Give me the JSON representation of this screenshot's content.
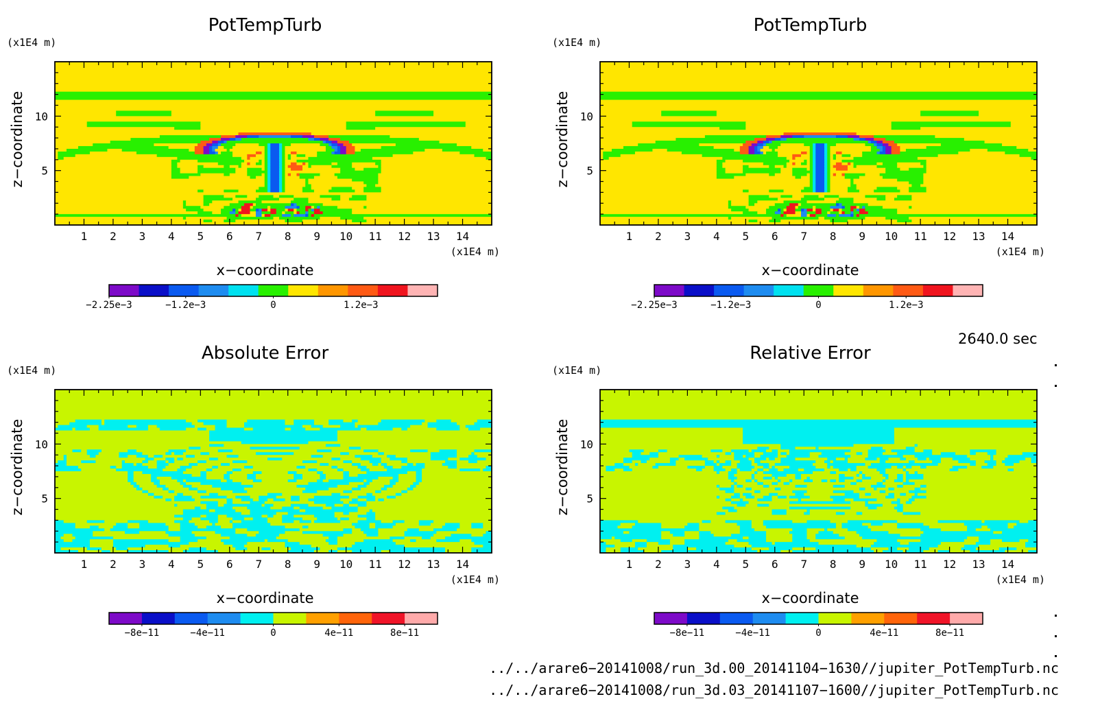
{
  "panels": [
    {
      "id": "tl",
      "title": "PotTempTurb",
      "xlabel": "x−coordinate",
      "ylabel": "z−coordinate",
      "unit": "(x1E4 m)",
      "field": "pottemp",
      "colorbar": {
        "colors": [
          "#7d0ac8",
          "#0a0fc8",
          "#0a5af0",
          "#1e8cf0",
          "#00e1f0",
          "#28f000",
          "#ffe600",
          "#ff9600",
          "#ff5a14",
          "#f0141e",
          "#ffb4b4"
        ],
        "ticks": [
          "−2.25e−3",
          "−1.2e−3",
          "0",
          "1.2e−3"
        ]
      }
    },
    {
      "id": "tr",
      "title": "PotTempTurb",
      "xlabel": "x−coordinate",
      "ylabel": "z−coordinate",
      "unit": "(x1E4 m)",
      "field": "pottemp",
      "colorbar": {
        "colors": [
          "#7d0ac8",
          "#0a0fc8",
          "#0a5af0",
          "#1e8cf0",
          "#00e1f0",
          "#28f000",
          "#ffe600",
          "#ff9600",
          "#ff5a14",
          "#f0141e",
          "#ffb4b4"
        ],
        "ticks": [
          "−2.25e−3",
          "−1.2e−3",
          "0",
          "1.2e−3"
        ]
      }
    },
    {
      "id": "bl",
      "title": "Absolute Error",
      "xlabel": "x−coordinate",
      "ylabel": "z−coordinate",
      "unit": "(x1E4 m)",
      "field": "abserr",
      "colorbar": {
        "colors": [
          "#7d0ac8",
          "#0a0fc8",
          "#0a5af0",
          "#1e8cf0",
          "#00f0f0",
          "#c8f500",
          "#ffa000",
          "#ff640a",
          "#f01428",
          "#ffaaaa"
        ],
        "ticks": [
          "−8e−11",
          "−4e−11",
          "0",
          "4e−11",
          "8e−11"
        ]
      }
    },
    {
      "id": "br",
      "title": "Relative Error",
      "xlabel": "x−coordinate",
      "ylabel": "z−coordinate",
      "unit": "(x1E4 m)",
      "field": "relerr",
      "colorbar": {
        "colors": [
          "#7d0ac8",
          "#0a0fc8",
          "#0a5af0",
          "#1e8cf0",
          "#00f0f0",
          "#c8f500",
          "#ffa000",
          "#ff640a",
          "#f01428",
          "#ffaaaa"
        ],
        "ticks": [
          "−8e−11",
          "−4e−11",
          "0",
          "4e−11",
          "8e−11"
        ]
      }
    }
  ],
  "timestamp": "2640.0 sec",
  "footer": {
    "file1": "../../arare6−20141008/run_3d.00_20141104−1630//jupiter_PotTempTurb.nc",
    "file2": "../../arare6−20141008/run_3d.03_20141107−1600//jupiter_PotTempTurb.nc"
  },
  "chart_data": [
    {
      "type": "heatmap",
      "title": "PotTempTurb",
      "xlabel": "x−coordinate",
      "ylabel": "z−coordinate",
      "xunit": "(x1E4 m)",
      "yunit": "(x1E4 m)",
      "xlim": [
        0,
        15
      ],
      "ylim": [
        0,
        15
      ],
      "xticks": [
        1,
        2,
        3,
        4,
        5,
        6,
        7,
        8,
        9,
        10,
        11,
        12,
        13,
        14
      ],
      "yticks": [
        5,
        10
      ],
      "colorbar_ticks": [
        "−2.25e−3",
        "−1.2e−3",
        "0",
        "1.2e−3"
      ],
      "colorbar_range": [
        -0.00225,
        0.00225
      ]
    },
    {
      "type": "heatmap",
      "title": "PotTempTurb",
      "xlabel": "x−coordinate",
      "ylabel": "z−coordinate",
      "xunit": "(x1E4 m)",
      "yunit": "(x1E4 m)",
      "xlim": [
        0,
        15
      ],
      "ylim": [
        0,
        15
      ],
      "xticks": [
        1,
        2,
        3,
        4,
        5,
        6,
        7,
        8,
        9,
        10,
        11,
        12,
        13,
        14
      ],
      "yticks": [
        5,
        10
      ],
      "colorbar_ticks": [
        "−2.25e−3",
        "−1.2e−3",
        "0",
        "1.2e−3"
      ],
      "colorbar_range": [
        -0.00225,
        0.00225
      ]
    },
    {
      "type": "heatmap",
      "title": "Absolute Error",
      "xlabel": "x−coordinate",
      "ylabel": "z−coordinate",
      "xunit": "(x1E4 m)",
      "yunit": "(x1E4 m)",
      "xlim": [
        0,
        15
      ],
      "ylim": [
        0,
        15
      ],
      "xticks": [
        1,
        2,
        3,
        4,
        5,
        6,
        7,
        8,
        9,
        10,
        11,
        12,
        13,
        14
      ],
      "yticks": [
        5,
        10
      ],
      "colorbar_ticks": [
        "−8e−11",
        "−4e−11",
        "0",
        "4e−11",
        "8e−11"
      ],
      "colorbar_range": [
        -1e-10,
        1e-10
      ]
    },
    {
      "type": "heatmap",
      "title": "Relative Error",
      "xlabel": "x−coordinate",
      "ylabel": "z−coordinate",
      "xunit": "(x1E4 m)",
      "yunit": "(x1E4 m)",
      "xlim": [
        0,
        15
      ],
      "ylim": [
        0,
        15
      ],
      "xticks": [
        1,
        2,
        3,
        4,
        5,
        6,
        7,
        8,
        9,
        10,
        11,
        12,
        13,
        14
      ],
      "yticks": [
        5,
        10
      ],
      "colorbar_ticks": [
        "−8e−11",
        "−4e−11",
        "0",
        "4e−11",
        "8e−11"
      ],
      "colorbar_range": [
        -1e-10,
        1e-10
      ]
    }
  ]
}
